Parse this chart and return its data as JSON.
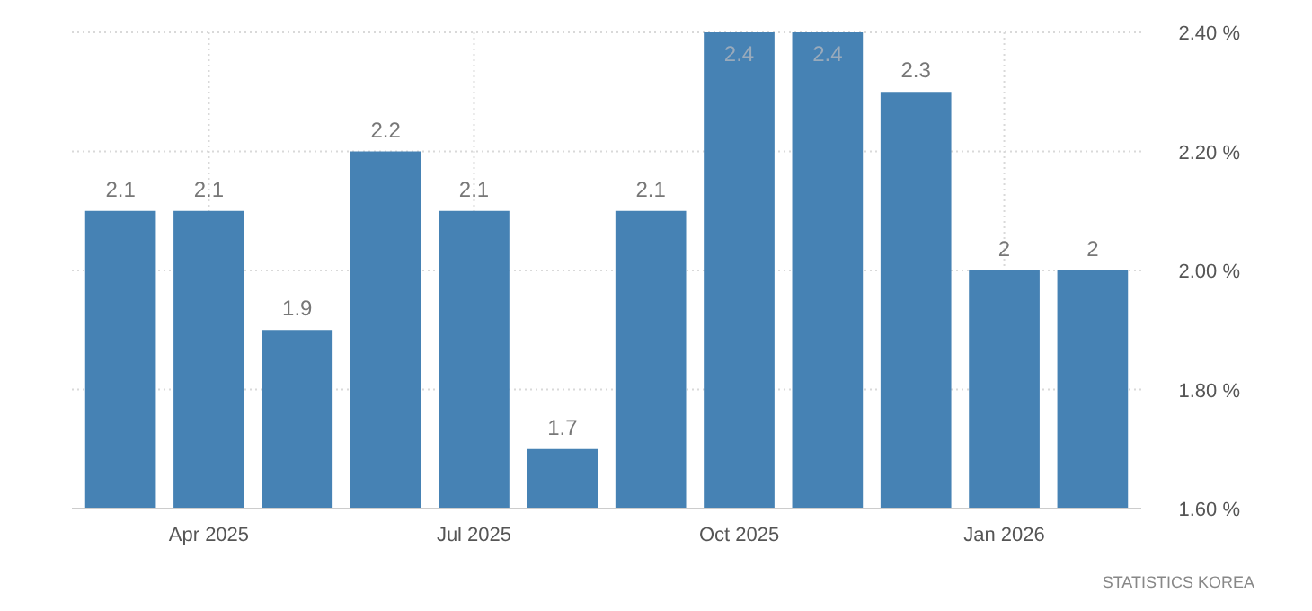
{
  "chart_data": {
    "type": "bar",
    "categories": [
      null,
      "Apr 2025",
      null,
      null,
      "Jul 2025",
      null,
      null,
      "Oct 2025",
      null,
      null,
      "Jan 2026",
      null
    ],
    "values": [
      2.1,
      2.1,
      1.9,
      2.2,
      2.1,
      1.7,
      2.1,
      2.4,
      2.4,
      2.3,
      2,
      2
    ],
    "color": "#4682b4",
    "ylim": [
      1.6,
      2.4
    ],
    "yticks": [
      {
        "value": 1.6,
        "label": "1.60 %"
      },
      {
        "value": 1.8,
        "label": "1.80 %"
      },
      {
        "value": 2.0,
        "label": "2.00 %"
      },
      {
        "value": 2.2,
        "label": "2.20 %"
      },
      {
        "value": 2.4,
        "label": "2.40 %"
      }
    ],
    "grid": true,
    "data_labels": true,
    "annotations": [
      "STATISTICS KOREA"
    ]
  }
}
